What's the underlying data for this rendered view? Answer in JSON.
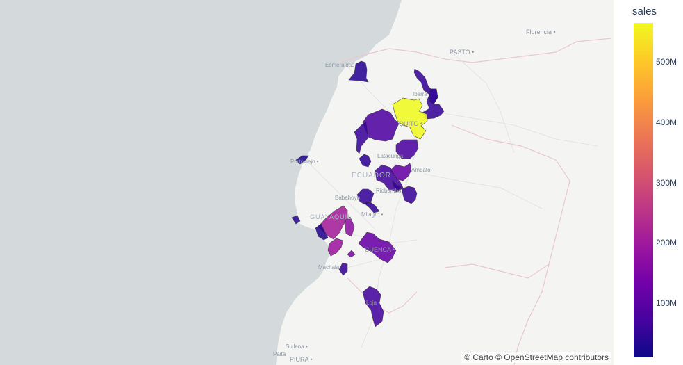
{
  "map": {
    "basemap": "carto-positron",
    "color_metric": "sales",
    "places": [
      {
        "name": "Florencia",
        "dot": true
      },
      {
        "name": "PASTO",
        "dot": true
      },
      {
        "name": "Esmeraldas",
        "dot": false
      },
      {
        "name": "Ibarra",
        "dot": false
      },
      {
        "name": "QUITO",
        "dot": true
      },
      {
        "name": "Latacunga",
        "dot": false
      },
      {
        "name": "Ambato",
        "dot": false
      },
      {
        "name": "ECUADOR",
        "dot": false
      },
      {
        "name": "Portoviejo",
        "dot": true
      },
      {
        "name": "Riobamba",
        "dot": false
      },
      {
        "name": "Babahoyo",
        "dot": false
      },
      {
        "name": "Milagro",
        "dot": true
      },
      {
        "name": "GUAYAQUIL",
        "dot": false
      },
      {
        "name": "CUENCA",
        "dot": true
      },
      {
        "name": "Machala",
        "dot": false
      },
      {
        "name": "Loja",
        "dot": true
      },
      {
        "name": "Sullana",
        "dot": true
      },
      {
        "name": "Paita",
        "dot": false
      },
      {
        "name": "PIURA",
        "dot": true
      }
    ],
    "regions": [
      {
        "id": "esmeraldas",
        "value": 40000000
      },
      {
        "id": "carchi-imbabura",
        "value": 55000000
      },
      {
        "id": "imbabura-north",
        "value": 50000000
      },
      {
        "id": "pichincha-quito",
        "value": 565000000
      },
      {
        "id": "santo-domingo",
        "value": 85000000
      },
      {
        "id": "los-rios-north",
        "value": 60000000
      },
      {
        "id": "manabi-coast",
        "value": 30000000
      },
      {
        "id": "cotopaxi-small",
        "value": 45000000
      },
      {
        "id": "latacunga",
        "value": 80000000
      },
      {
        "id": "ambato-tungurahua",
        "value": 120000000
      },
      {
        "id": "riobamba-chimborazo",
        "value": 70000000
      },
      {
        "id": "bolivar",
        "value": 55000000
      },
      {
        "id": "puyo-east",
        "value": 60000000
      },
      {
        "id": "babahoyo",
        "value": 55000000
      },
      {
        "id": "milagro",
        "value": 50000000
      },
      {
        "id": "guayaquil",
        "value": 210000000
      },
      {
        "id": "playas",
        "value": 40000000
      },
      {
        "id": "santa-elena",
        "value": 35000000
      },
      {
        "id": "daule-east",
        "value": 175000000
      },
      {
        "id": "machala-el-oro",
        "value": 195000000
      },
      {
        "id": "pasaje",
        "value": 150000000
      },
      {
        "id": "cuenca-azuay",
        "value": 120000000
      },
      {
        "id": "el-oro-south",
        "value": 60000000
      },
      {
        "id": "loja",
        "value": 70000000
      }
    ]
  },
  "colorbar": {
    "title": "sales",
    "range": [
      10000000,
      565000000
    ],
    "ticks": [
      {
        "value": 100000000,
        "label": "100M"
      },
      {
        "value": 200000000,
        "label": "200M"
      },
      {
        "value": 300000000,
        "label": "300M"
      },
      {
        "value": 400000000,
        "label": "400M"
      },
      {
        "value": 500000000,
        "label": "500M"
      }
    ],
    "colorscale": [
      "#0d0887",
      "#46039f",
      "#7201a8",
      "#9c179e",
      "#bd3786",
      "#d8576b",
      "#ed7953",
      "#fb9f3a",
      "#fdca26",
      "#f0f921"
    ]
  },
  "attribution": "© Carto © OpenStreetMap contributors"
}
